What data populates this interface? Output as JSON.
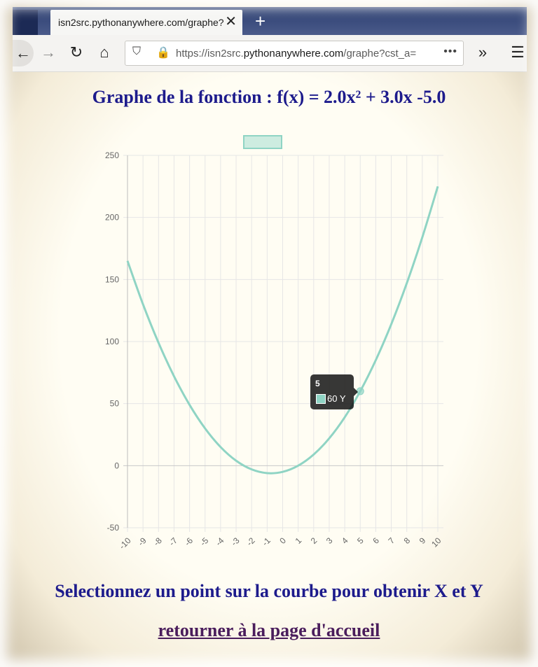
{
  "browser": {
    "tab_title": "isn2src.pythonanywhere.com/graphe?",
    "url_prefix": "https://isn2src.",
    "url_domain": "pythonanywhere.com",
    "url_path": "/graphe?cst_a=",
    "icons": {
      "back": "back-arrow-icon",
      "forward": "forward-arrow-icon",
      "reload": "reload-icon",
      "home": "home-icon",
      "shield": "shield-icon",
      "lock": "lock-icon",
      "page_actions": "more-dots-icon",
      "overflow": "chevron-double-right-icon",
      "menu": "hamburger-menu-icon",
      "tab_close": "close-icon",
      "new_tab": "plus-icon"
    }
  },
  "page": {
    "title": "Graphe de la fonction : f(x) = 2.0x² + 3.0x -5.0",
    "instructions": "Selectionnez un point sur la courbe pour obtenir X et Y",
    "home_link": "retourner à la page d'accueil"
  },
  "tooltip": {
    "title": "5",
    "label": "60 Y"
  },
  "chart_data": {
    "type": "line",
    "x": [
      -10,
      -9,
      -8,
      -7,
      -6,
      -5,
      -4,
      -3,
      -2,
      -1,
      0,
      1,
      2,
      3,
      4,
      5,
      6,
      7,
      8,
      9,
      10
    ],
    "series": [
      {
        "values": [
          165,
          130,
          99,
          72,
          49,
          30,
          15,
          4,
          -3,
          -6,
          -5,
          0,
          9,
          22,
          39,
          60,
          85,
          114,
          147,
          184,
          225
        ]
      }
    ],
    "ylim": [
      -50,
      250
    ],
    "yticks": [
      -50,
      0,
      50,
      100,
      150,
      200,
      250
    ],
    "grid": true,
    "legend": "top",
    "color": "#8fd4c4",
    "highlighted_point": {
      "x": 5,
      "y": 60
    }
  }
}
